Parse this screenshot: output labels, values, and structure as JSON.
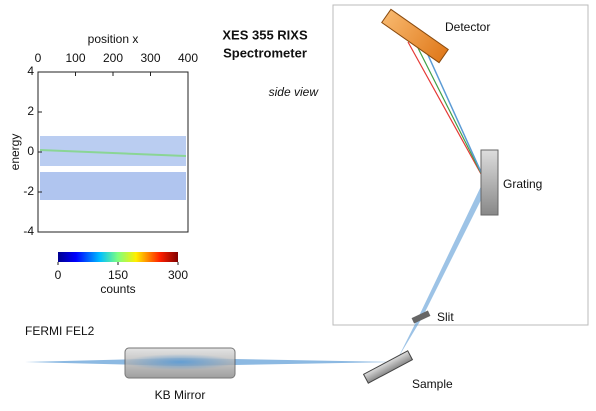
{
  "title_lines": [
    "XES 355 RIXS",
    "Spectrometer"
  ],
  "subtitle": "side view",
  "labels": {
    "detector": "Detector",
    "grating": "Grating",
    "slit": "Slit",
    "sample": "Sample",
    "kb_mirror": "KB Mirror",
    "source": "FERMI FEL2"
  },
  "inset": {
    "x_label": "position x",
    "y_label": "energy",
    "xlim": [
      0,
      400
    ],
    "xticks": [
      0,
      100,
      200,
      300,
      400
    ],
    "ylim": [
      -4,
      4
    ],
    "yticks": [
      -4,
      -2,
      0,
      2,
      4
    ],
    "colorbar": {
      "label": "counts",
      "lim": [
        0,
        300
      ],
      "ticks": [
        0,
        150,
        300
      ]
    }
  }
}
